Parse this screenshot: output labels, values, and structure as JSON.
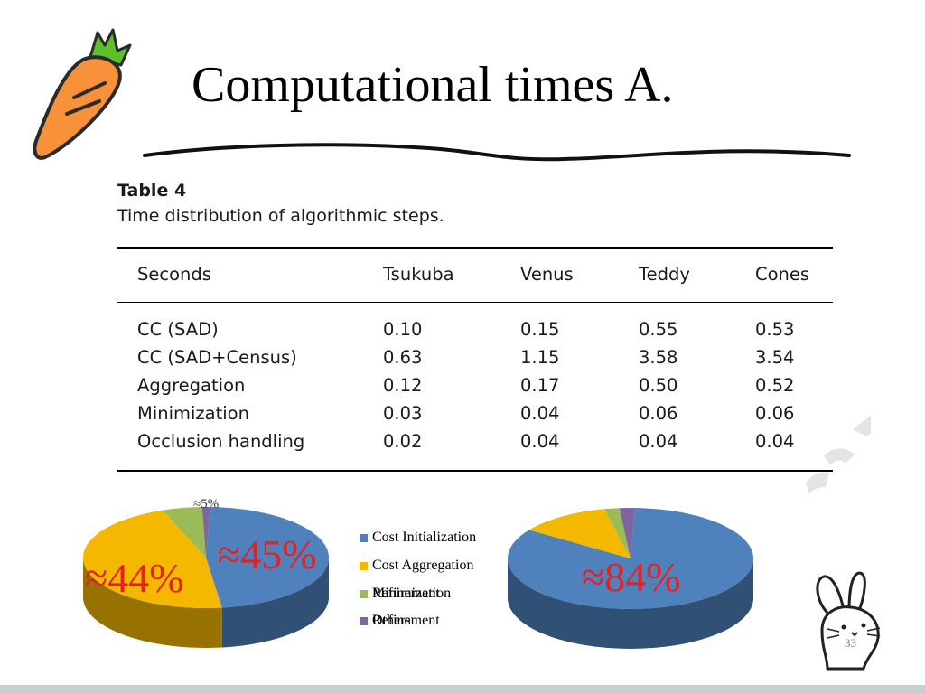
{
  "slide": {
    "title": "Computational times A.",
    "page_number": "33"
  },
  "table": {
    "number": "Table 4",
    "caption": "Time distribution of algorithmic steps.",
    "headers": [
      "Seconds",
      "Tsukuba",
      "Venus",
      "Teddy",
      "Cones"
    ],
    "rows": [
      [
        "CC (SAD)",
        "0.10",
        "0.15",
        "0.55",
        "0.53"
      ],
      [
        "CC (SAD+Census)",
        "0.63",
        "1.15",
        "3.58",
        "3.54"
      ],
      [
        "Aggregation",
        "0.12",
        "0.17",
        "0.50",
        "0.52"
      ],
      [
        "Minimization",
        "0.03",
        "0.04",
        "0.06",
        "0.06"
      ],
      [
        "Occlusion handling",
        "0.02",
        "0.04",
        "0.04",
        "0.04"
      ]
    ]
  },
  "chart_data": [
    {
      "type": "pie",
      "categories": [
        "Cost Initialization",
        "Cost Aggregation",
        "Minimization",
        "Refinement"
      ],
      "values": [
        45,
        44,
        5,
        1
      ],
      "annotations": [
        "≈45%",
        "≈44%",
        "≈5%"
      ],
      "colors": [
        "#4f81bd",
        "#f5b800",
        "#9bbb59",
        "#8064a2"
      ]
    },
    {
      "type": "pie",
      "categories": [
        "Cost Initialization",
        "Cost Aggregation",
        "Minimization",
        "Refinement"
      ],
      "values": [
        84,
        12,
        2,
        2
      ],
      "annotations": [
        "≈84%"
      ],
      "colors": [
        "#4f81bd",
        "#f5b800",
        "#9bbb59",
        "#8064a2"
      ]
    }
  ],
  "legend": {
    "items": [
      {
        "label": "Cost Initialization",
        "color": "#4f81bd"
      },
      {
        "label": "Cost Aggregation",
        "color": "#f5b800"
      },
      {
        "label": "Minimization",
        "color": "#9bbb59"
      },
      {
        "label": "Refinement",
        "color": "#8064a2"
      }
    ],
    "overlapping_labels": [
      "Refinement",
      "Others"
    ]
  }
}
